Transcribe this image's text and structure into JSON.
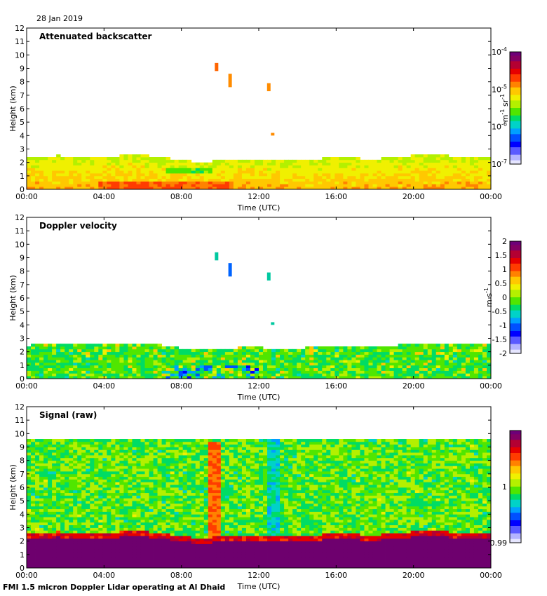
{
  "date": "28 Jan 2019",
  "footer": "FMI 1.5 micron Doppler Lidar operating at Al Dhaid",
  "chart_data": [
    {
      "type": "heatmap",
      "title": "Attenuated backscatter",
      "xlabel": "Time (UTC)",
      "ylabel": "Height (km)",
      "xticks": [
        "00:00",
        "04:00",
        "08:00",
        "12:00",
        "16:00",
        "20:00",
        "00:00"
      ],
      "yticks": [
        "0",
        "1",
        "2",
        "3",
        "4",
        "5",
        "6",
        "7",
        "8",
        "9",
        "10",
        "11",
        "12"
      ],
      "ylim": [
        0,
        12
      ],
      "colorbar": {
        "scale": "log",
        "range": [
          1e-07,
          0.0001
        ],
        "ticks": [
          {
            "base": "10",
            "exp": "-4"
          },
          {
            "base": "10",
            "exp": "-5"
          },
          {
            "base": "10",
            "exp": "-6"
          },
          {
            "base": "10",
            "exp": "-7"
          }
        ],
        "label_main": "m",
        "label_exp1": "-1",
        "label_mid": " sr",
        "label_exp2": "-1"
      },
      "features": [
        {
          "kind": "boundary layer",
          "time_range_h": [
            0,
            24
          ],
          "top_km": [
            2.3,
            2.6
          ]
        },
        {
          "kind": "cloud",
          "time_h": 9.8,
          "height_km": [
            8.8,
            9.4
          ]
        },
        {
          "kind": "cloud",
          "time_h": 10.5,
          "height_km": [
            7.6,
            8.6
          ]
        },
        {
          "kind": "cloud",
          "time_h": 12.5,
          "height_km": [
            7.3,
            7.9
          ]
        },
        {
          "kind": "cloud",
          "time_h": 12.7,
          "height_km": [
            4.0,
            4.2
          ]
        }
      ]
    },
    {
      "type": "heatmap",
      "title": "Doppler velocity",
      "xlabel": "Time (UTC)",
      "ylabel": "Height (km)",
      "xticks": [
        "00:00",
        "04:00",
        "08:00",
        "12:00",
        "16:00",
        "20:00",
        "00:00"
      ],
      "yticks": [
        "0",
        "1",
        "2",
        "3",
        "4",
        "5",
        "6",
        "7",
        "8",
        "9",
        "10",
        "11",
        "12"
      ],
      "ylim": [
        0,
        12
      ],
      "colorbar": {
        "scale": "linear",
        "range": [
          -2,
          2
        ],
        "ticks": [
          "2",
          "1.5",
          "1",
          "0.5",
          "0",
          "-0.5",
          "-1",
          "-1.5",
          "-2"
        ],
        "label_main": "m s",
        "label_exp1": "-1"
      }
    },
    {
      "type": "heatmap",
      "title": "Signal (raw)",
      "xlabel": "Time (UTC)",
      "ylabel": "Height (km)",
      "xticks": [
        "00:00",
        "04:00",
        "08:00",
        "12:00",
        "16:00",
        "20:00",
        "00:00"
      ],
      "yticks": [
        "0",
        "1",
        "2",
        "3",
        "4",
        "5",
        "6",
        "7",
        "8",
        "9",
        "10",
        "11",
        "12"
      ],
      "ylim": [
        0,
        12
      ],
      "data_top_km": 9.6,
      "colorbar": {
        "scale": "linear",
        "range": [
          0.99,
          1.01
        ],
        "ticks": [
          "1",
          "0.99"
        ]
      }
    }
  ],
  "colors": {
    "cmap": [
      "#e6e6ff",
      "#b4b4ff",
      "#5a5aff",
      "#0000ff",
      "#0050ff",
      "#00a0ff",
      "#00d2c8",
      "#00dc64",
      "#50e600",
      "#b4f000",
      "#f0f000",
      "#ffc800",
      "#ff8200",
      "#ff3c00",
      "#e60000",
      "#b40032",
      "#820064",
      "#6e0078"
    ],
    "bottom_purple": "#6e006e"
  }
}
